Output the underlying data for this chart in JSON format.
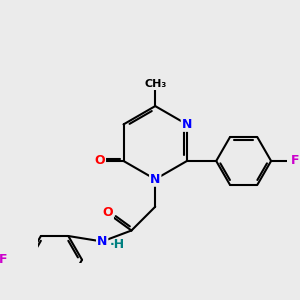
{
  "background_color": "#ebebeb",
  "atom_colors": {
    "N": "#0000ff",
    "O": "#ff0000",
    "F": "#cc00cc",
    "C": "#000000",
    "H": "#008080"
  },
  "bond_color": "#000000",
  "bond_width": 1.5,
  "font_size_atom": 9
}
